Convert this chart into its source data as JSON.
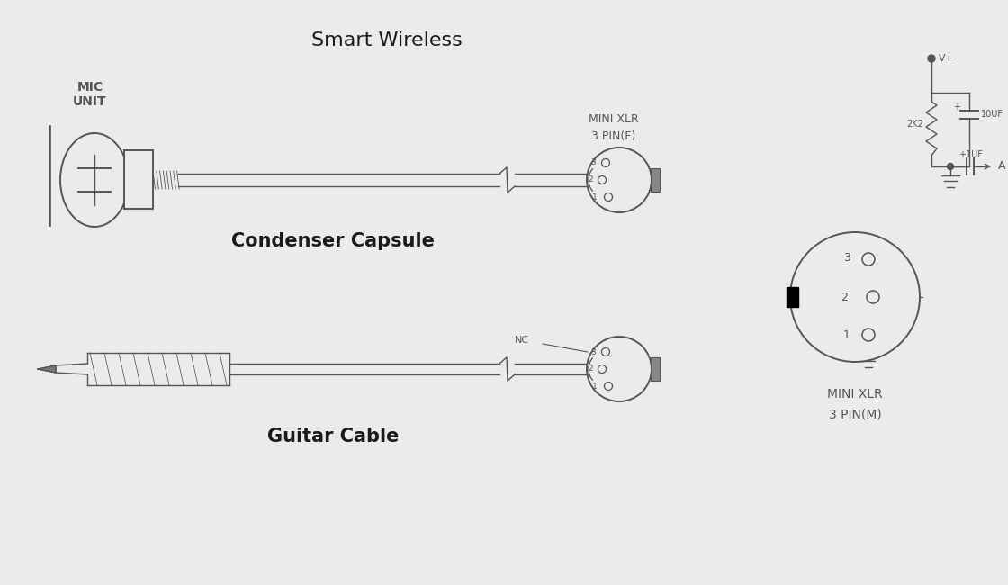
{
  "title": "Smart Wireless",
  "bg_color": "#ebebeb",
  "line_color": "#555555",
  "text_color_dark": "#1a1a1a",
  "text_color_mid": "#555555",
  "labels": {
    "mic_unit": "MIC\nUNIT",
    "condenser": "Condenser Capsule",
    "mini_xlr_f_top": "MINI XLR",
    "mini_xlr_f_bot": "3 PIN(F)",
    "guitar_cable": "Guitar Cable",
    "nc": "NC",
    "mini_xlr_m_top": "MINI XLR",
    "mini_xlr_m_bot": "3 PIN(M)",
    "vplus": "V+",
    "A_label": "A",
    "r1": "2K2",
    "r2": "+1UF",
    "c1": "10UF",
    "plus": "+"
  }
}
